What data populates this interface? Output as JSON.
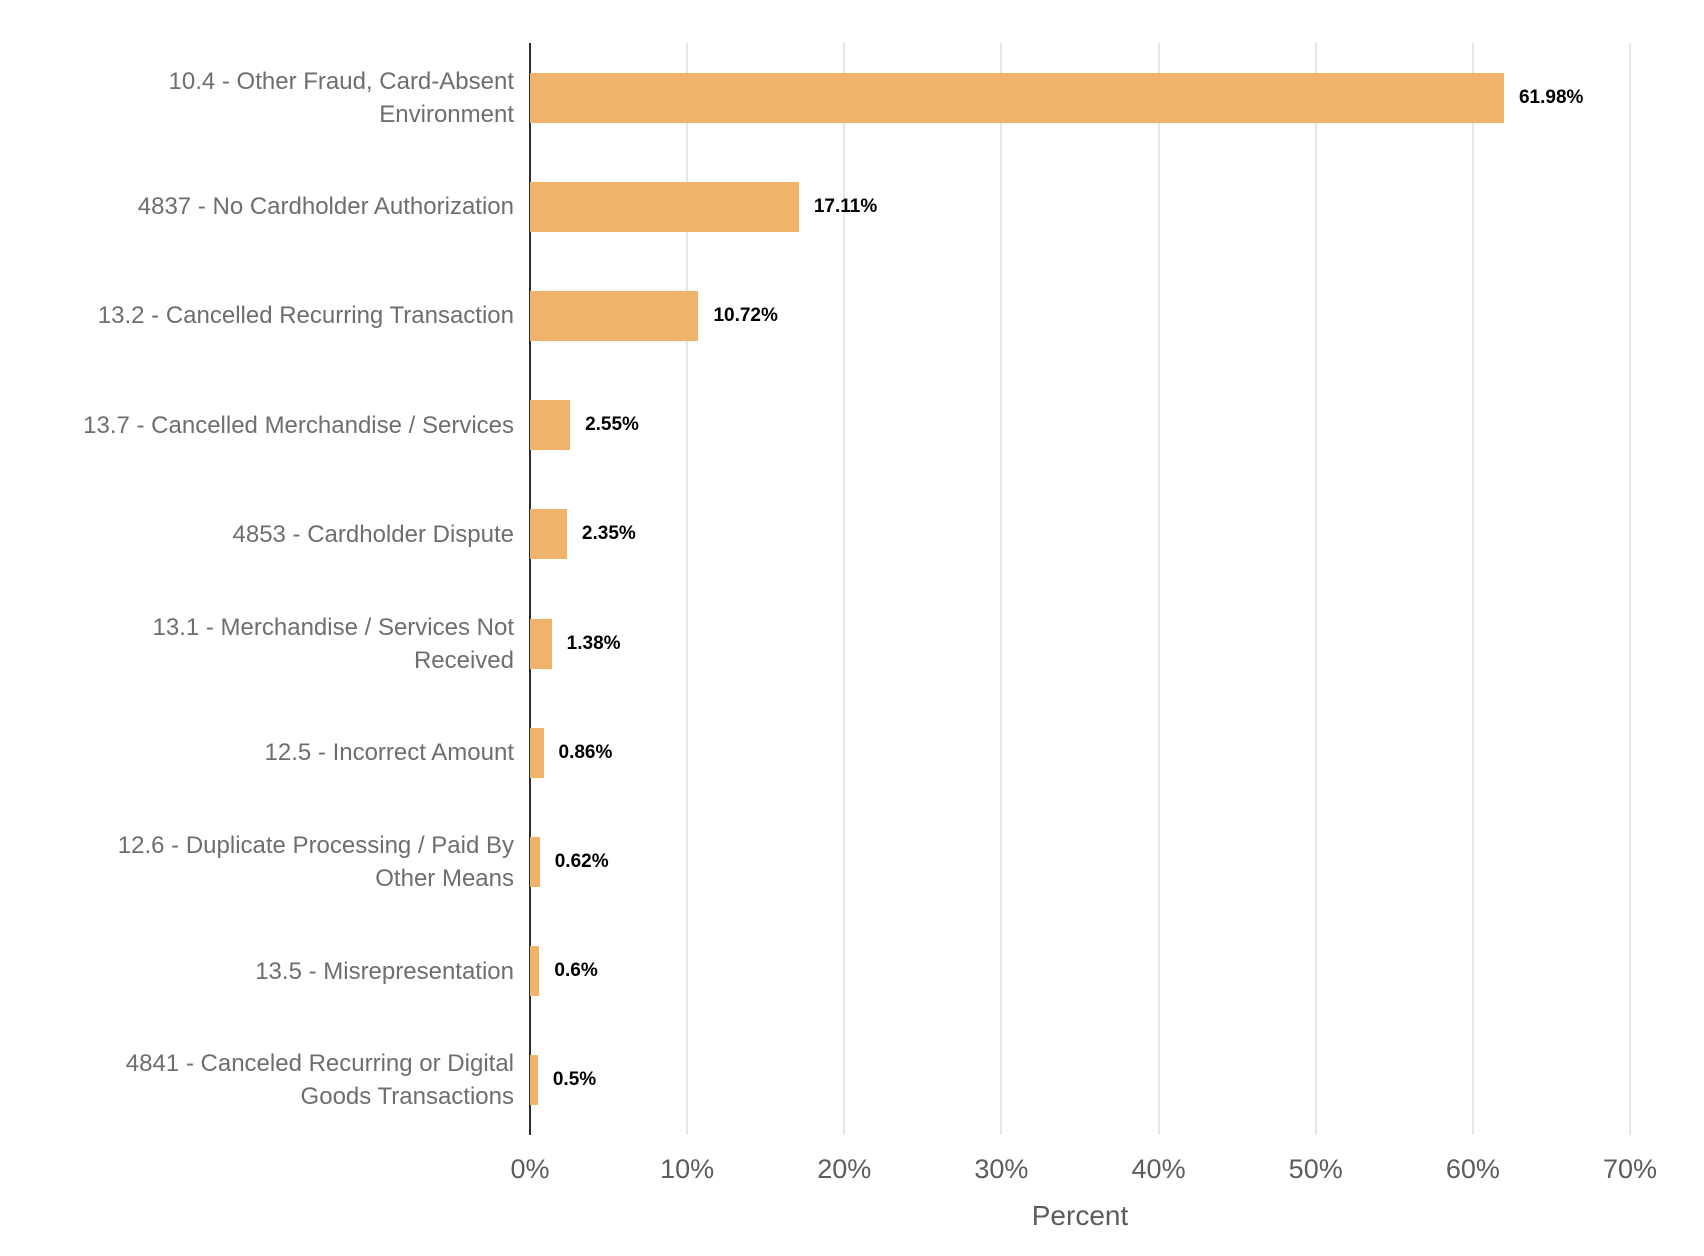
{
  "chart_data": {
    "type": "bar",
    "orientation": "horizontal",
    "title": "",
    "xlabel": "Percent",
    "ylabel": "",
    "categories": [
      "10.4 - Other Fraud, Card-Absent\nEnvironment",
      "4837 - No Cardholder Authorization",
      "13.2 - Cancelled Recurring Transaction",
      "13.7 - Cancelled Merchandise / Services",
      "4853 - Cardholder Dispute",
      "13.1 - Merchandise / Services Not\nReceived",
      "12.5 - Incorrect Amount",
      "12.6 - Duplicate Processing / Paid By\nOther Means",
      "13.5 - Misrepresentation",
      "4841 - Canceled Recurring or Digital\nGoods Transactions"
    ],
    "values": [
      61.98,
      17.11,
      10.72,
      2.55,
      2.35,
      1.38,
      0.86,
      0.62,
      0.6,
      0.5
    ],
    "value_labels": [
      "61.98%",
      "17.11%",
      "10.72%",
      "2.55%",
      "2.35%",
      "1.38%",
      "0.86%",
      "0.62%",
      "0.6%",
      "0.5%"
    ],
    "x_tick_values": [
      0,
      10,
      20,
      30,
      40,
      50,
      60,
      70
    ],
    "x_tick_labels": [
      "0%",
      "10%",
      "20%",
      "30%",
      "40%",
      "50%",
      "60%",
      "70%"
    ],
    "xlim": [
      0,
      70
    ],
    "grid": "vertical-gridlines",
    "legend": "none",
    "colors": {
      "bar": "#EFB46A",
      "category_label": "#6E6E6E",
      "tick_label": "#5C5C5C",
      "value_label": "#000000",
      "axis_line": "#2D2D2D",
      "gridline": "#E7E7E7",
      "background": "#FFFFFF"
    }
  }
}
